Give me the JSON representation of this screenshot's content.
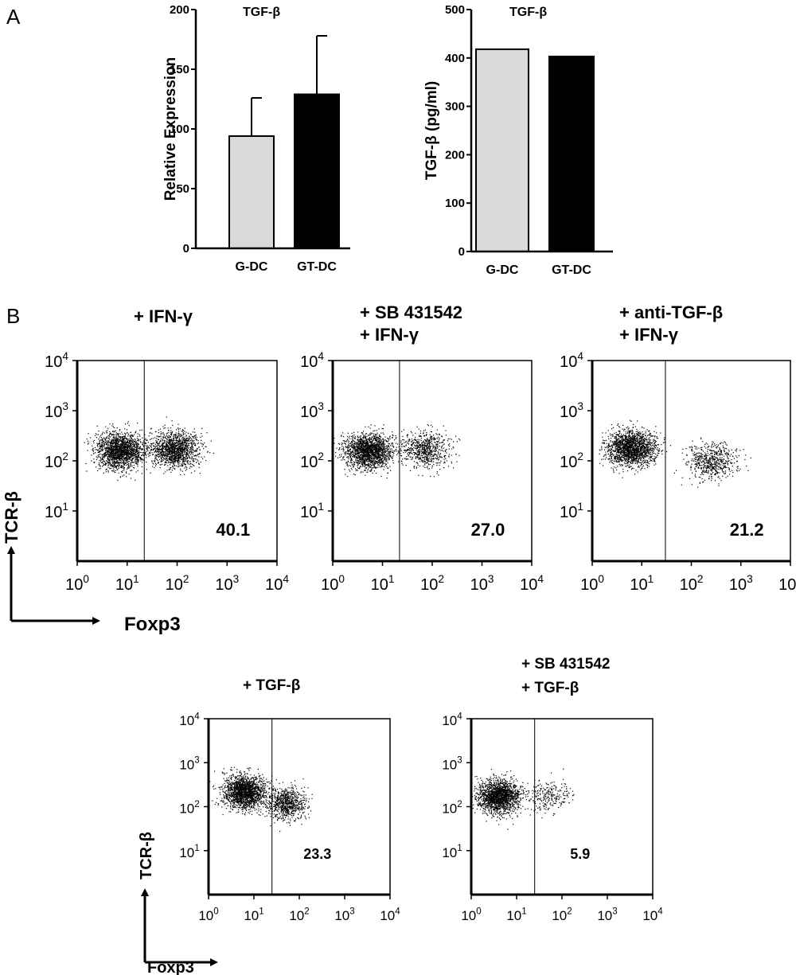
{
  "panels": {
    "A": "A",
    "B": "B"
  },
  "chart_data": [
    {
      "id": "bar1",
      "type": "bar",
      "title": "TGF-β",
      "ylabel": "Relative Expression",
      "categories": [
        "G-DC",
        "GT-DC"
      ],
      "values": [
        94,
        129
      ],
      "errors": [
        32,
        49
      ],
      "ylim": [
        0,
        200
      ],
      "yticks": [
        0,
        50,
        100,
        150,
        200
      ],
      "colors": [
        "#d9d9d9",
        "#000000"
      ]
    },
    {
      "id": "bar2",
      "type": "bar",
      "title": "TGF-β",
      "ylabel": "TGF-β (pg/ml)",
      "categories": [
        "G-DC",
        "GT-DC"
      ],
      "values": [
        418,
        403
      ],
      "ylim": [
        0,
        500
      ],
      "yticks": [
        0,
        100,
        200,
        300,
        400,
        500
      ],
      "colors": [
        "#d9d9d9",
        "#000000"
      ]
    },
    {
      "id": "flow1",
      "type": "scatter",
      "title_lines": [
        "+ IFN-γ"
      ],
      "percent": "40.1",
      "xlabel": "Foxp3",
      "ylabel": "TCR-β",
      "scale": "log",
      "xlim": [
        1,
        10000
      ],
      "ylim": [
        1,
        10000
      ],
      "gate_x": 22,
      "populations": [
        {
          "x": 7,
          "y": 160,
          "n": 1800
        },
        {
          "x": 90,
          "y": 170,
          "n": 1400
        }
      ]
    },
    {
      "id": "flow2",
      "type": "scatter",
      "title_lines": [
        "+ SB 431542",
        "+ IFN-γ"
      ],
      "percent": "27.0",
      "xlabel": "Foxp3",
      "ylabel": "TCR-β",
      "scale": "log",
      "xlim": [
        1,
        10000
      ],
      "ylim": [
        1,
        10000
      ],
      "gate_x": 22,
      "populations": [
        {
          "x": 5,
          "y": 160,
          "n": 1800
        },
        {
          "x": 75,
          "y": 170,
          "n": 700
        }
      ]
    },
    {
      "id": "flow3",
      "type": "scatter",
      "title_lines": [
        "+ anti-TGF-β",
        "+ IFN-γ"
      ],
      "percent": "21.2",
      "xlabel": "Foxp3",
      "ylabel": "TCR-β",
      "scale": "log",
      "xlim": [
        1,
        10000
      ],
      "ylim": [
        1,
        10000
      ],
      "gate_x": 30,
      "populations": [
        {
          "x": 6,
          "y": 180,
          "n": 1800
        },
        {
          "x": 250,
          "y": 100,
          "n": 600
        }
      ]
    },
    {
      "id": "flow4",
      "type": "scatter",
      "title_lines": [
        "+ TGF-β"
      ],
      "percent": "23.3",
      "xlabel": "Foxp3",
      "ylabel": "TCR-β",
      "scale": "log",
      "xlim": [
        1,
        10000
      ],
      "ylim": [
        1,
        10000
      ],
      "gate_x": 25,
      "populations": [
        {
          "x": 6,
          "y": 220,
          "n": 1800
        },
        {
          "x": 50,
          "y": 120,
          "n": 800
        }
      ]
    },
    {
      "id": "flow5",
      "type": "scatter",
      "title_lines": [
        "+ SB 431542",
        "+ TGF-β"
      ],
      "percent": "5.9",
      "xlabel": "Foxp3",
      "ylabel": "TCR-β",
      "scale": "log",
      "xlim": [
        1,
        10000
      ],
      "ylim": [
        1,
        10000
      ],
      "gate_x": 25,
      "populations": [
        {
          "x": 4,
          "y": 170,
          "n": 1800
        },
        {
          "x": 50,
          "y": 180,
          "n": 250
        }
      ]
    }
  ],
  "axes_labels": {
    "foxp3_top": "Foxp3",
    "tcr_top": "TCR-β",
    "foxp3_bottom": "Foxp3",
    "tcr_bottom": "TCR-β"
  }
}
